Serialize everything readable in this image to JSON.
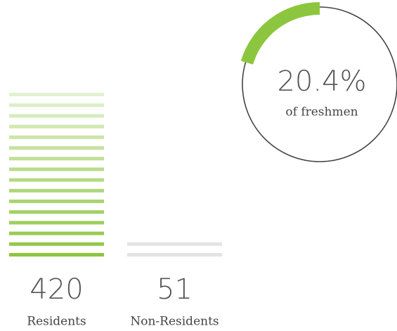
{
  "chart_data": [
    {
      "type": "bar",
      "categories": [
        "Residents",
        "Non-Residents"
      ],
      "values": [
        420,
        51
      ],
      "colors": [
        "#8cc63f",
        "#e3e3e3"
      ]
    },
    {
      "type": "donut",
      "values": [
        20.4
      ],
      "value_labels": [
        "20.4%"
      ],
      "label": "of freshmen",
      "color": "#8cc63f"
    }
  ]
}
